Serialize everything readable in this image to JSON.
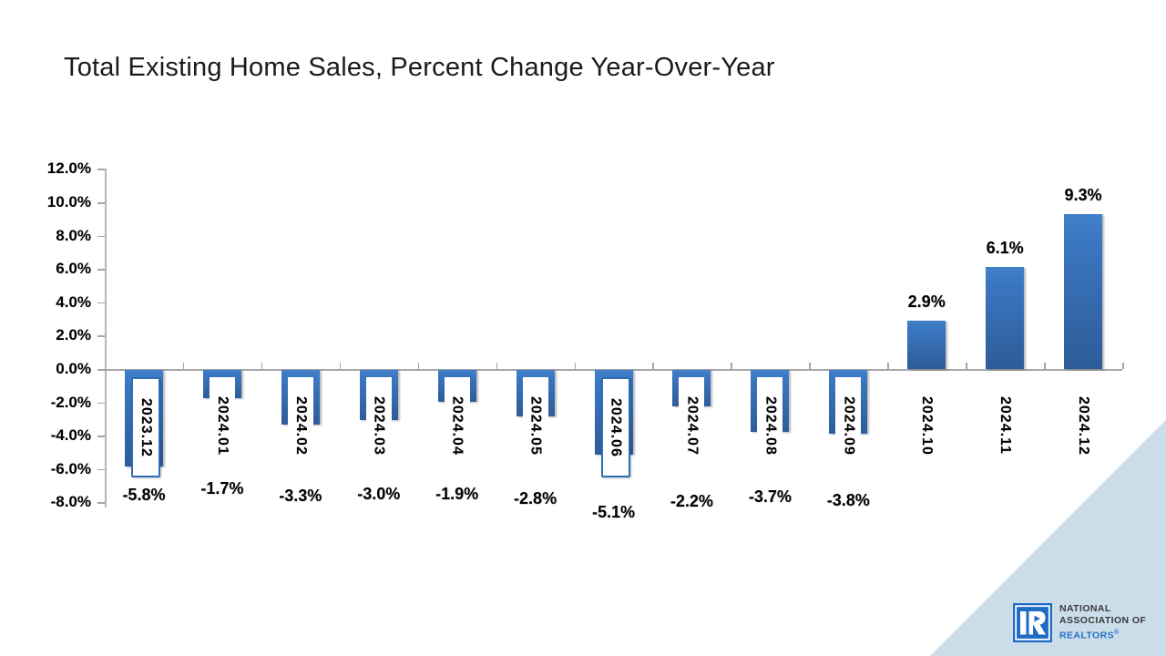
{
  "slide": {
    "title": "Total Existing Home Sales, Percent Change Year-Over-Year"
  },
  "chart_data": {
    "type": "bar",
    "title": "Total Existing Home Sales, Percent Change Year-Over-Year",
    "categories": [
      "2023.12",
      "2024.01",
      "2024.02",
      "2024.03",
      "2024.04",
      "2024.05",
      "2024.06",
      "2024.07",
      "2024.08",
      "2024.09",
      "2024.10",
      "2024.11",
      "2024.12"
    ],
    "values": [
      -5.8,
      -1.7,
      -3.3,
      -3.0,
      -1.9,
      -2.8,
      -5.1,
      -2.2,
      -3.7,
      -3.8,
      2.9,
      6.1,
      9.3
    ],
    "value_labels": [
      "-5.8%",
      "-1.7%",
      "-3.3%",
      "-3.0%",
      "-1.9%",
      "-2.8%",
      "-5.1%",
      "-2.2%",
      "-3.7%",
      "-3.8%",
      "2.9%",
      "6.1%",
      "9.3%"
    ],
    "boxed_category_labels": [
      "2023.12",
      "2024.06"
    ],
    "xlabel": "",
    "ylabel": "",
    "ylim": [
      -8,
      12
    ],
    "ytick_step": 2,
    "ytick_labels": [
      "12.0%",
      "10.0%",
      "8.0%",
      "6.0%",
      "4.0%",
      "2.0%",
      "0.0%",
      "-2.0%",
      "-4.0%",
      "-6.0%",
      "-8.0%"
    ],
    "grid": "off",
    "legend": "none",
    "bar_color_top": "#4280ca",
    "bar_color_bottom": "#2e5c99",
    "axis_color": "#a6a6a6"
  },
  "logo": {
    "line1": "NATIONAL",
    "line2": "ASSOCIATION OF",
    "line3": "REALTORS",
    "reg_mark": "®",
    "square_color": "#1f6bc4",
    "text_color": "#393b3d",
    "accent_color": "#2272c3"
  },
  "decor": {
    "wedge_color": "#cbdde9"
  }
}
